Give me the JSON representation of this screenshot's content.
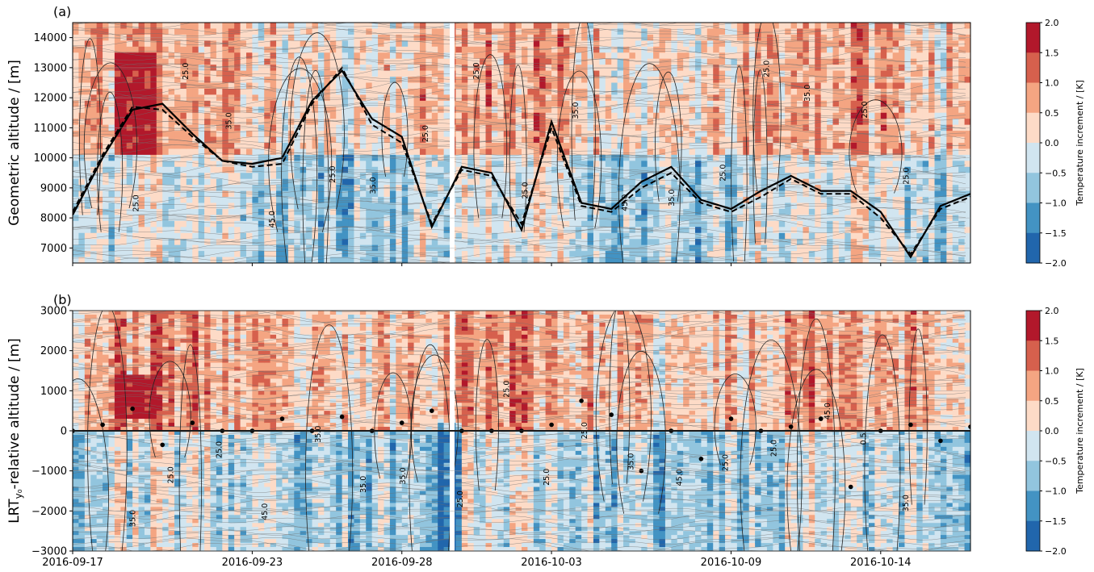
{
  "figure": {
    "colorbar_label": "Temperature increment / [K]",
    "colorbar_ticks": [
      "2.0",
      "1.5",
      "1.0",
      "0.5",
      "0.0",
      "−0.5",
      "−1.0",
      "−1.5",
      "−2.0"
    ],
    "colorbar_levels": [
      2.0,
      1.5,
      1.0,
      0.5,
      0.0,
      -0.5,
      -1.0,
      -1.5,
      -2.0
    ],
    "colorbar_colors": [
      "#b2182b",
      "#d6604d",
      "#f4a582",
      "#fddbc7",
      "#d1e5f0",
      "#92c5de",
      "#4393c3",
      "#2166ac"
    ],
    "x_ticks": [
      "2016-09-17",
      "2016-09-23",
      "2016-09-28",
      "2016-10-03",
      "2016-10-09",
      "2016-10-14"
    ]
  },
  "chart_data": [
    {
      "panel": "(a)",
      "type": "heatmap",
      "ylabel": "Geometric altitude / [m]",
      "y_ticks": [
        "7000",
        "8000",
        "9000",
        "10000",
        "11000",
        "12000",
        "13000",
        "14000"
      ],
      "ylim": [
        6500,
        14500
      ],
      "x_start": "2016-09-17",
      "x_end": "2016-10-17",
      "contour_labels": [
        "25.0",
        "25.0",
        "35.0",
        "45.0",
        "25.0",
        "35.0",
        "25.0",
        "25.0",
        "25.0",
        "35.0",
        "45.0",
        "35.0",
        "25.0",
        "25.0",
        "35.0",
        "25.0",
        "25.0"
      ],
      "series": [
        {
          "name": "",
          "style": "solid",
          "x": [
            "2016-09-17",
            "2016-09-18",
            "2016-09-19",
            "2016-09-20",
            "2016-09-21",
            "2016-09-22",
            "2016-09-23",
            "2016-09-24",
            "2016-09-25",
            "2016-09-26",
            "2016-09-27",
            "2016-09-28",
            "2016-09-29",
            "2016-09-30",
            "2016-10-01",
            "2016-10-02",
            "2016-10-03",
            "2016-10-04",
            "2016-10-05",
            "2016-10-06",
            "2016-10-07",
            "2016-10-08",
            "2016-10-09",
            "2016-10-10",
            "2016-10-11",
            "2016-10-12",
            "2016-10-13",
            "2016-10-14",
            "2016-10-15",
            "2016-10-16",
            "2016-10-17"
          ],
          "y": [
            8100,
            10000,
            11600,
            11800,
            10800,
            9900,
            9800,
            10000,
            11900,
            12900,
            11300,
            10700,
            7700,
            9700,
            9500,
            7600,
            11200,
            8500,
            8300,
            9200,
            9700,
            8600,
            8300,
            8900,
            9400,
            8900,
            8900,
            8200,
            6700,
            8400,
            8800
          ]
        },
        {
          "name": "",
          "style": "dashed",
          "x": [
            "2016-09-17",
            "2016-09-18",
            "2016-09-19",
            "2016-09-20",
            "2016-09-21",
            "2016-09-22",
            "2016-09-23",
            "2016-09-24",
            "2016-09-25",
            "2016-09-26",
            "2016-09-27",
            "2016-09-28",
            "2016-09-29",
            "2016-09-30",
            "2016-10-01",
            "2016-10-02",
            "2016-10-03",
            "2016-10-04",
            "2016-10-05",
            "2016-10-06",
            "2016-10-07",
            "2016-10-08",
            "2016-10-09",
            "2016-10-10",
            "2016-10-11",
            "2016-10-12",
            "2016-10-13",
            "2016-10-14",
            "2016-10-15",
            "2016-10-16",
            "2016-10-17"
          ],
          "y": [
            8200,
            10100,
            11700,
            11600,
            10700,
            9900,
            9700,
            9800,
            11800,
            13000,
            11100,
            10500,
            7800,
            9600,
            9400,
            7800,
            11000,
            8400,
            8200,
            9000,
            9500,
            8500,
            8200,
            8700,
            9300,
            8800,
            8800,
            8000,
            6800,
            8300,
            8700
          ]
        }
      ]
    },
    {
      "panel": "(b)",
      "type": "heatmap",
      "ylabel": "LRT",
      "ylabel_sub": "y₀",
      "ylabel_suffix": "-relative altitude  / [m]",
      "y_ticks": [
        "3000",
        "2000",
        "1000",
        "0",
        "−1000",
        "−2000",
        "−3000"
      ],
      "ylim": [
        -3000,
        3000
      ],
      "x_start": "2016-09-17",
      "x_end": "2016-10-17",
      "contour_labels": [
        "35.0",
        "25.0",
        "25.0",
        "45.0",
        "35.0",
        "35.0",
        "35.0",
        "25.0",
        "25.0",
        "25.0",
        "25.0",
        "35.0",
        "45.0",
        "25.0",
        "25.0",
        "45.0",
        "0.5",
        "35.0"
      ],
      "zero_line": 0,
      "points_x": [
        "2016-09-17",
        "2016-09-18",
        "2016-09-19",
        "2016-09-20",
        "2016-09-21",
        "2016-09-22",
        "2016-09-23",
        "2016-09-24",
        "2016-09-25",
        "2016-09-26",
        "2016-09-27",
        "2016-09-28",
        "2016-09-29",
        "2016-09-30",
        "2016-10-01",
        "2016-10-02",
        "2016-10-03",
        "2016-10-04",
        "2016-10-05",
        "2016-10-06",
        "2016-10-07",
        "2016-10-08",
        "2016-10-09",
        "2016-10-10",
        "2016-10-11",
        "2016-10-12",
        "2016-10-13",
        "2016-10-14",
        "2016-10-15",
        "2016-10-16",
        "2016-10-17"
      ],
      "points_y": [
        0,
        150,
        550,
        -350,
        200,
        0,
        0,
        300,
        0,
        350,
        0,
        200,
        500,
        0,
        0,
        0,
        150,
        750,
        400,
        -1000,
        0,
        -700,
        300,
        0,
        100,
        300,
        -1400,
        0,
        150,
        -250,
        100
      ]
    }
  ]
}
